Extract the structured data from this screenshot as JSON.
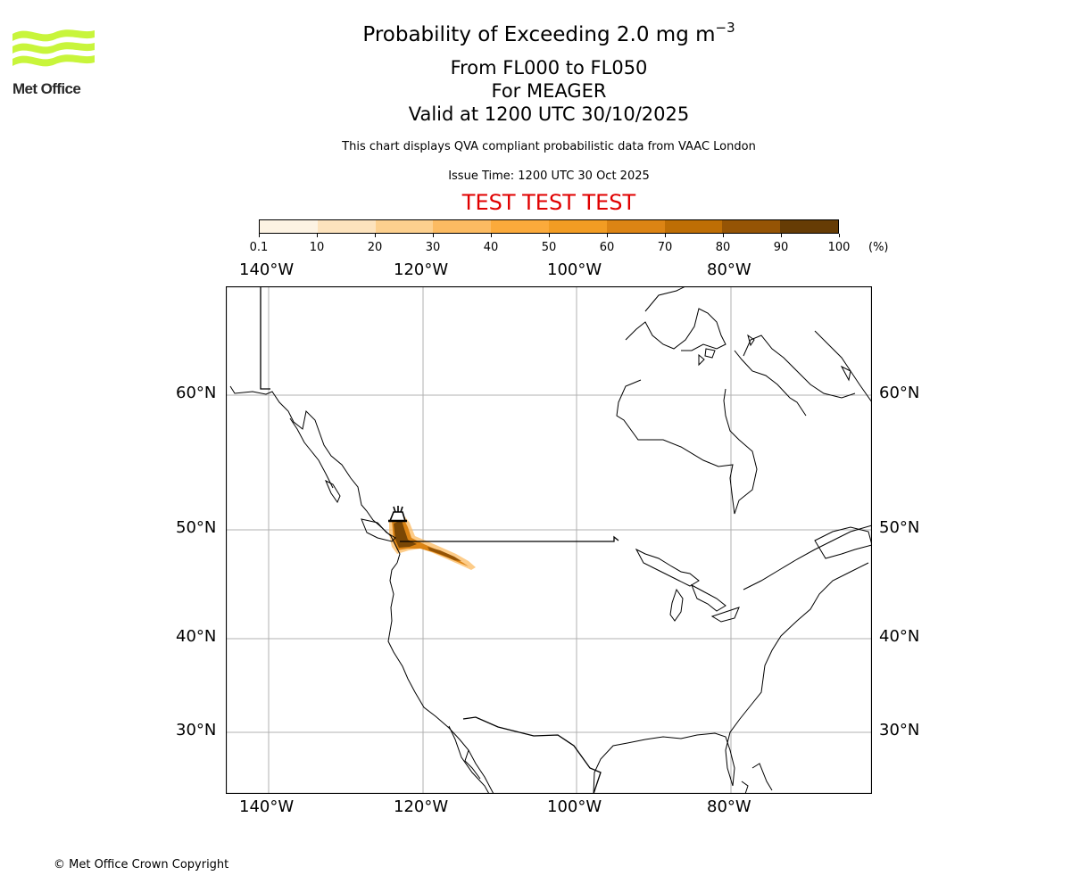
{
  "header": {
    "logo_text": "Met Office",
    "title_main": "Probability of Exceeding 2.0 mg m",
    "title_superscript": "−3",
    "line2": "From FL000 to FL050",
    "line3": "For MEAGER",
    "line4": "Valid at 1200 UTC 30/10/2025",
    "subtitle": "This chart displays QVA compliant probabilistic data from VAAC London",
    "issue_time": "Issue Time: 1200 UTC 30 Oct 2025",
    "test_banner": "TEST TEST TEST",
    "test_color": "#e00000"
  },
  "footer": {
    "copyright": "© Met Office Crown Copyright"
  },
  "chart_data": {
    "type": "heatmap",
    "title": "Probability of Exceeding 2.0 mg m−3",
    "subtitle": "From FL000 to FL050 / For MEAGER / Valid at 1200 UTC 30/10/2025",
    "colorbar": {
      "unit": "(%)",
      "ticks": [
        "0.1",
        "10",
        "20",
        "30",
        "40",
        "50",
        "60",
        "70",
        "80",
        "90",
        "100"
      ],
      "colors": [
        "#fdf3e3",
        "#fde3bd",
        "#fdd08e",
        "#fcbb62",
        "#fbaa3b",
        "#f29c23",
        "#dc8414",
        "#be6e05",
        "#955405",
        "#663c05"
      ]
    },
    "x_axis": {
      "ticks": [
        "140°W",
        "120°W",
        "100°W",
        "80°W"
      ],
      "range_lon": [
        -145,
        -61
      ]
    },
    "y_axis": {
      "ticks": [
        "60°N",
        "50°N",
        "40°N",
        "30°N"
      ],
      "range_lat": [
        24,
        68
      ]
    },
    "grid": true,
    "volcano": {
      "name": "MEAGER",
      "lat": 50.6,
      "lon": -123.5
    },
    "plume": {
      "description": "Ash plume from Mount Meager (BC) extending ESE into Washington/Idaho",
      "core_prob_pct": "90-100",
      "extent_lon": [
        -124,
        -113.5
      ],
      "extent_lat": [
        46.5,
        51
      ]
    }
  }
}
